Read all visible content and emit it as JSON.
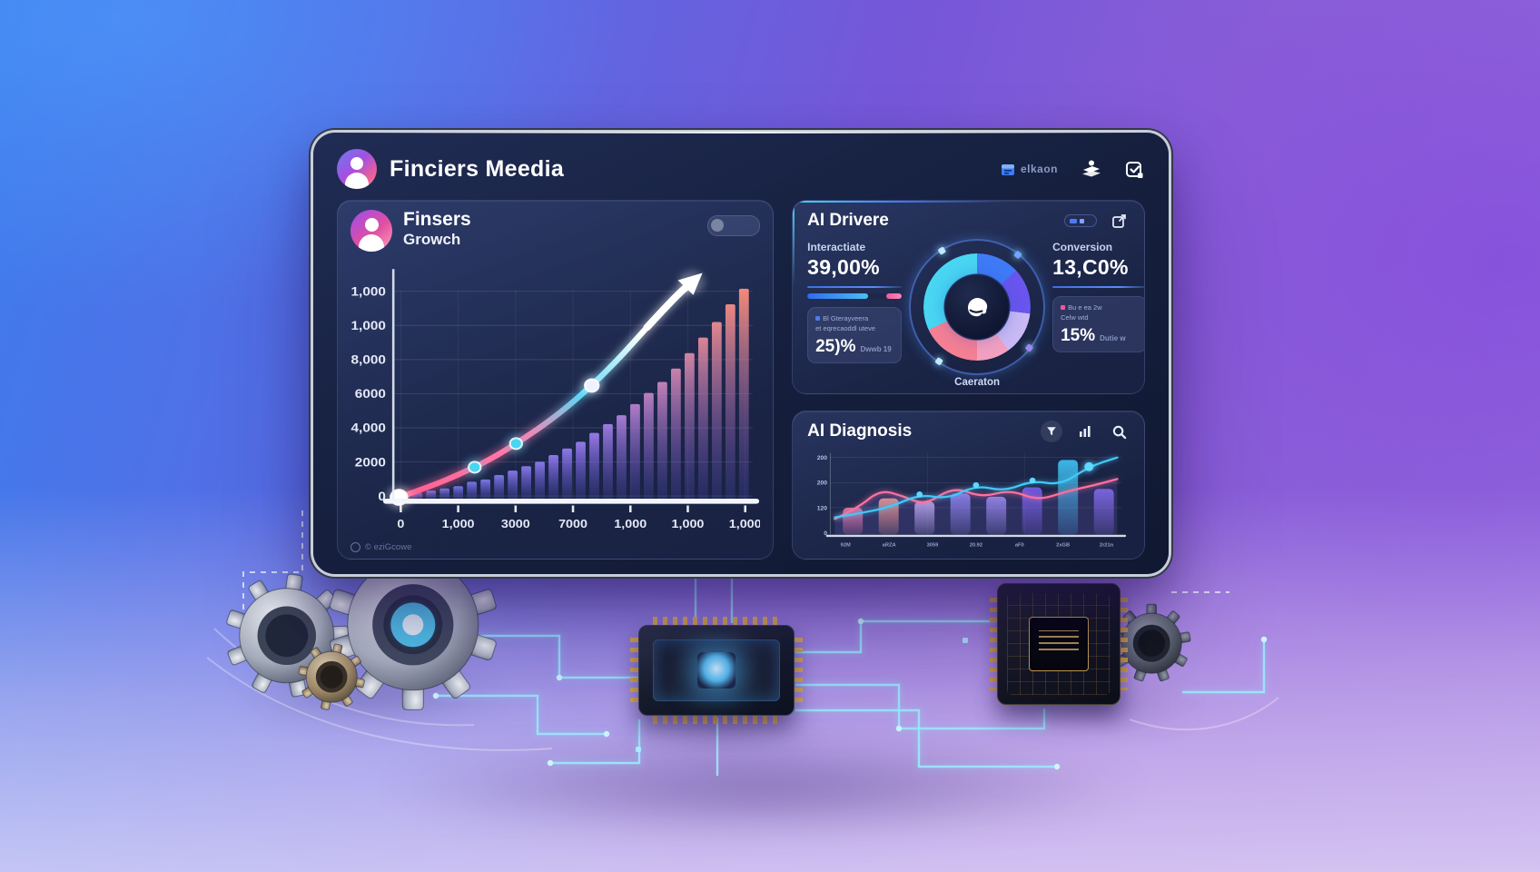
{
  "colors": {
    "accent_cyan": "#49d6f2",
    "accent_blue": "#3f7bf6",
    "accent_purple": "#8a5cf0",
    "accent_pink": "#f5679b",
    "bar_gradient_start": "#6e79ea",
    "bar_gradient_mid": "#9b7df2",
    "bar_gradient_end": "#ff8f79"
  },
  "dashboard": {
    "header": {
      "title": "Finciers Meedia",
      "badge_label": "elkaon"
    },
    "growth": {
      "title": "Finsers",
      "subtitle": "Growch",
      "footer": "© eziGcowe"
    },
    "drivers": {
      "title": "AI Drivere",
      "left": {
        "label": "Interactiate",
        "value": "39,00%",
        "progress": {
          "fill_pct": 64,
          "tip_pct": 16
        },
        "sub_line1": "Bl Gterayveera",
        "sub_line2": "et eqrecaoddl uteve",
        "sub_value": "25)%",
        "sub_suffix": "Dwwb 19"
      },
      "donut": {
        "caption": "Caeraton",
        "segments": [
          {
            "color": "#3f7bf6",
            "pct": 13
          },
          {
            "color": "#6a55ee",
            "pct": 14
          },
          {
            "color": "#c9b9f4",
            "pct": 13
          },
          {
            "color": "#f2a0c0",
            "pct": 10
          },
          {
            "color": "#f57f93",
            "pct": 18
          },
          {
            "color": "#49d6f2",
            "pct": 32
          }
        ]
      },
      "right": {
        "label": "Conversion",
        "value": "13,C0%",
        "sub_line1": "Bu e ea 2w",
        "sub_line2": "Celw wtd",
        "sub_value": "15%",
        "sub_suffix": "Dutie w"
      }
    },
    "diagnosis": {
      "title": "AI Diagnosis"
    }
  },
  "chart_data": [
    {
      "type": "bar",
      "title": "Finsers Growth",
      "ylabel": "",
      "xlabel": "",
      "grid": true,
      "yticks": [
        "1,000",
        "1,000",
        "8,000",
        "6000",
        "4,000",
        "2000",
        "0"
      ],
      "xticks": [
        "0",
        "1,000",
        "3000",
        "7000",
        "1,000",
        "1,000",
        "1,000"
      ],
      "bars_pct": [
        2,
        3,
        4,
        5,
        6,
        8,
        9,
        11,
        13,
        15,
        17,
        20,
        23,
        26,
        30,
        34,
        38,
        43,
        48,
        53,
        59,
        66,
        73,
        80,
        88,
        95
      ],
      "line_pct": [
        [
          0,
          1
        ],
        [
          9,
          6
        ],
        [
          18,
          12
        ],
        [
          27,
          19
        ],
        [
          36,
          28
        ],
        [
          45,
          38
        ],
        [
          54,
          50
        ],
        [
          63,
          64
        ],
        [
          72,
          80
        ],
        [
          80,
          94
        ],
        [
          85,
          101
        ]
      ],
      "markers": [
        {
          "x": 0,
          "y": 1,
          "color": "#ffffff",
          "r": 9
        },
        {
          "x": 22,
          "y": 15,
          "color": "#49d6f2",
          "r": 6.5
        },
        {
          "x": 34,
          "y": 26,
          "color": "#49d6f2",
          "r": 6.5
        },
        {
          "x": 56,
          "y": 53,
          "color": "#eef2ff",
          "r": 7.5
        }
      ],
      "arrow": true
    },
    {
      "type": "bar",
      "title": "AI Diagnosis",
      "grid": true,
      "yticks": [
        "200",
        "200",
        "120",
        "0"
      ],
      "xticks": [
        "92M",
        "aRZA",
        "3059",
        "20.92",
        "aF0",
        "2xGB",
        "2r21n"
      ],
      "bars": {
        "values_pct": [
          34,
          46,
          42,
          52,
          48,
          60,
          95,
          58
        ],
        "colors": [
          "#f2789e",
          "#ff9d85",
          "#c0aef0",
          "#8f86ee",
          "#9a8cf0",
          "#7a5ff0",
          "#3fc6f7",
          "#7f68e8"
        ]
      },
      "lines": [
        {
          "name": "pink-trend",
          "color": "#ff6f9e",
          "points_pct": [
            [
              0,
              20
            ],
            [
              8,
              34
            ],
            [
              16,
              58
            ],
            [
              24,
              50
            ],
            [
              32,
              38
            ],
            [
              42,
              62
            ],
            [
              52,
              48
            ],
            [
              62,
              58
            ],
            [
              72,
              44
            ],
            [
              82,
              56
            ],
            [
              92,
              64
            ],
            [
              100,
              72
            ]
          ],
          "dots": []
        },
        {
          "name": "cyan-trend",
          "color": "#41c8f8",
          "points_pct": [
            [
              0,
              22
            ],
            [
              10,
              28
            ],
            [
              20,
              36
            ],
            [
              30,
              52
            ],
            [
              40,
              46
            ],
            [
              50,
              64
            ],
            [
              60,
              56
            ],
            [
              70,
              70
            ],
            [
              80,
              64
            ],
            [
              90,
              88
            ],
            [
              100,
              100
            ]
          ],
          "dots": [
            3,
            5,
            7,
            9
          ],
          "big_dot": 9
        }
      ]
    }
  ]
}
